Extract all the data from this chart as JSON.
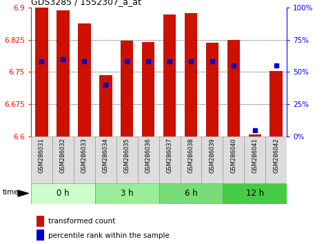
{
  "title": "GDS3285 / 1552307_a_at",
  "samples": [
    "GSM286031",
    "GSM286032",
    "GSM286033",
    "GSM286034",
    "GSM286035",
    "GSM286036",
    "GSM286037",
    "GSM286038",
    "GSM286039",
    "GSM286040",
    "GSM286041",
    "GSM286042"
  ],
  "bar_tops": [
    6.899,
    6.893,
    6.862,
    6.742,
    6.822,
    6.82,
    6.884,
    6.887,
    6.818,
    6.825,
    6.605,
    6.752
  ],
  "percentile_values": [
    58,
    60,
    58,
    40,
    58,
    58,
    58,
    58,
    58,
    55,
    5,
    55
  ],
  "bar_bottom": 6.6,
  "ylim_left": [
    6.6,
    6.9
  ],
  "ylim_right": [
    0,
    100
  ],
  "yticks_left": [
    6.6,
    6.675,
    6.75,
    6.825,
    6.9
  ],
  "yticks_right": [
    0,
    25,
    50,
    75,
    100
  ],
  "bar_color": "#cc1100",
  "dot_color": "#0000cc",
  "bg_color": "#ffffff",
  "group_colors": [
    "#ccffcc",
    "#99ee99",
    "#77dd77",
    "#44cc44"
  ],
  "groups": [
    {
      "label": "0 h",
      "start": 0,
      "end": 3
    },
    {
      "label": "3 h",
      "start": 3,
      "end": 6
    },
    {
      "label": "6 h",
      "start": 6,
      "end": 9
    },
    {
      "label": "12 h",
      "start": 9,
      "end": 12
    }
  ],
  "legend_bar_label": "transformed count",
  "legend_dot_label": "percentile rank within the sample"
}
